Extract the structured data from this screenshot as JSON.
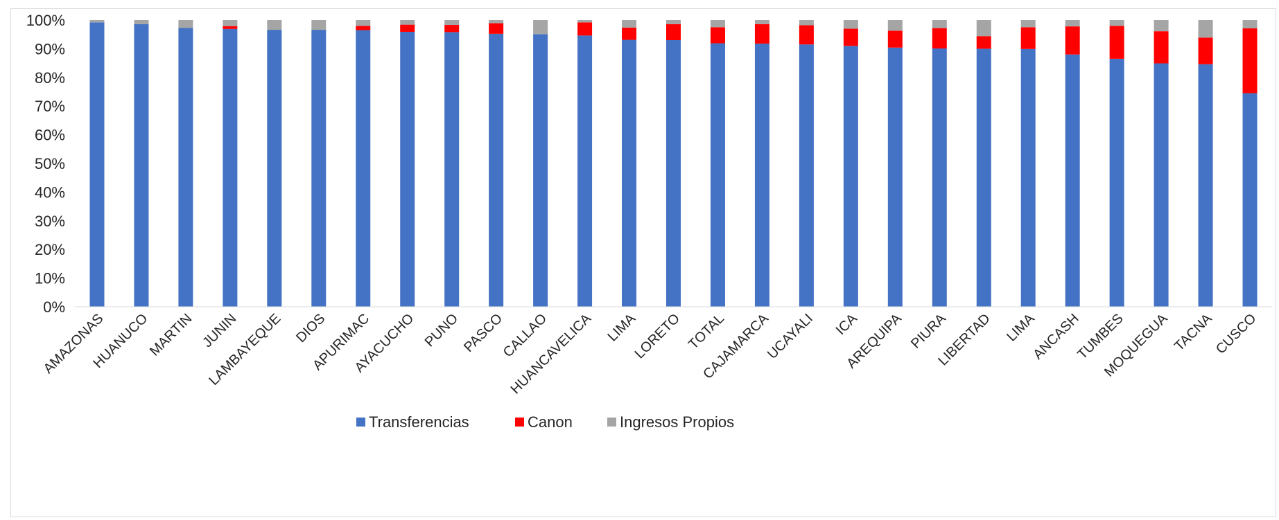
{
  "chart_data": {
    "type": "bar",
    "stacked": true,
    "percent": true,
    "ylim": [
      0,
      100
    ],
    "ytick_step": 10,
    "ytick_suffix": "%",
    "grid": false,
    "legend_position": "bottom",
    "categories": [
      "AMAZONAS",
      "HUANUCO",
      "MARTIN",
      "JUNIN",
      "LAMBAYEQUE",
      "DIOS",
      "APURIMAC",
      "AYACUCHO",
      "PUNO",
      "PASCO",
      "CALLAO",
      "HUANCAVELICA",
      "LIMA",
      "LORETO",
      "TOTAL",
      "CAJAMARCA",
      "UCAYALI",
      "ICA",
      "AREQUIPA",
      "PIURA",
      "LIBERTAD",
      "LIMA",
      "ANCASH",
      "TUMBES",
      "MOQUEGUA",
      "TACNA",
      "CUSCO"
    ],
    "series": [
      {
        "name": "Transferencias",
        "color": "#4472C4",
        "values": [
          99.2,
          98.6,
          97.3,
          96.9,
          96.6,
          96.6,
          96.5,
          95.9,
          95.8,
          95.2,
          95.1,
          94.6,
          93.1,
          93.0,
          91.9,
          91.8,
          91.5,
          91.0,
          90.4,
          90.1,
          90.0,
          89.9,
          88.0,
          86.5,
          84.9,
          84.6,
          74.5
        ]
      },
      {
        "name": "Canon",
        "color": "#FF0000",
        "values": [
          0.0,
          0.0,
          0.0,
          1.0,
          0.0,
          0.0,
          1.5,
          2.5,
          2.5,
          3.7,
          0.0,
          4.6,
          4.3,
          5.6,
          5.6,
          6.8,
          6.7,
          6.0,
          5.9,
          7.1,
          4.4,
          7.6,
          9.8,
          11.5,
          11.2,
          9.3,
          22.6
        ]
      },
      {
        "name": "Ingresos Propios",
        "color": "#A5A5A5",
        "values": [
          0.8,
          1.4,
          2.7,
          2.1,
          3.4,
          3.4,
          2.0,
          1.6,
          1.7,
          1.1,
          4.9,
          0.8,
          2.6,
          1.4,
          2.5,
          1.4,
          1.8,
          3.0,
          3.7,
          2.8,
          5.6,
          2.5,
          2.2,
          2.0,
          3.9,
          6.1,
          2.9
        ]
      }
    ]
  }
}
